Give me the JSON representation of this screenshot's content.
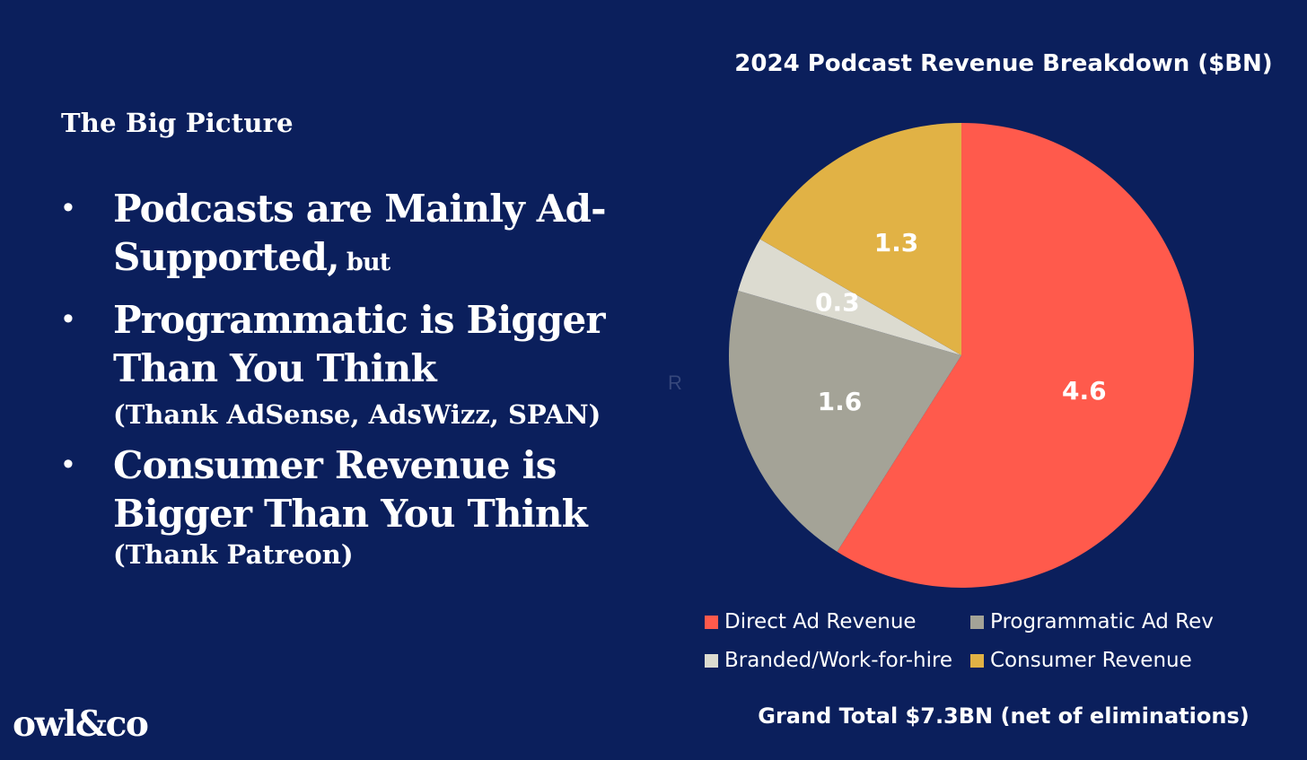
{
  "left": {
    "eyebrow": "The Big Picture",
    "bullet_glyph": "•",
    "bullets": [
      {
        "main": "Podcasts are Mainly Ad-Supported,",
        "trail": "but",
        "note": ""
      },
      {
        "main": "Programmatic is Bigger Than You Think",
        "trail": "",
        "note": "(Thank AdSense, AdsWizz, SPAN)"
      },
      {
        "main": "Consumer Revenue is Bigger Than You Think",
        "trail": "",
        "note": "(Thank Patreon)"
      }
    ],
    "logo": "owl&co"
  },
  "stray_letter": "R",
  "chart_data": {
    "type": "pie",
    "title": "2024 Podcast Revenue Breakdown ($BN)",
    "categories": [
      "Direct Ad Revenue",
      "Programmatic Ad Rev",
      "Branded/Work-for-hire",
      "Consumer Revenue"
    ],
    "values": [
      4.6,
      1.6,
      0.3,
      1.3
    ],
    "value_labels": [
      "4.6",
      "1.6",
      "0.3",
      "1.3"
    ],
    "colors": [
      "#ff5a4c",
      "#a4a397",
      "#dcdbd0",
      "#e1b245"
    ],
    "start": "12 o'clock",
    "direction": "clockwise",
    "legend_position": "bottom",
    "footnote": "Grand Total $7.3BN (net of eliminations)"
  }
}
